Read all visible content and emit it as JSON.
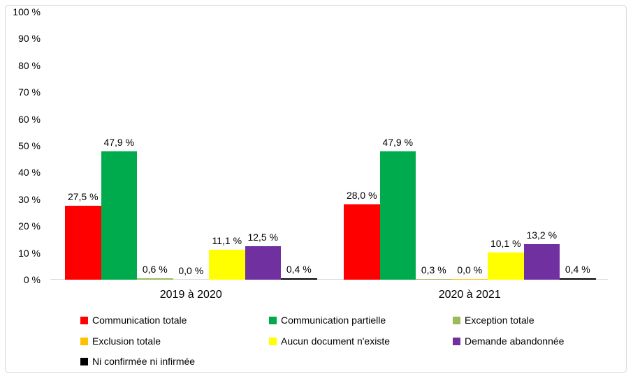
{
  "chart_data": {
    "type": "bar",
    "title": "",
    "categories": [
      "2019 à 2020",
      "2020 à 2021"
    ],
    "series": [
      {
        "name": "Communication totale",
        "color": "#ff0000",
        "values": [
          27.5,
          28.0
        ],
        "labels": [
          "27,5 %",
          "28,0 %"
        ]
      },
      {
        "name": "Communication partielle",
        "color": "#00ab4e",
        "values": [
          47.9,
          47.9
        ],
        "labels": [
          "47,9 %",
          "47,9 %"
        ]
      },
      {
        "name": "Exception totale",
        "color": "#9bbb59",
        "values": [
          0.6,
          0.3
        ],
        "labels": [
          "0,6 %",
          "0,3 %"
        ]
      },
      {
        "name": "Exclusion totale",
        "color": "#ffc000",
        "values": [
          0.0,
          0.0
        ],
        "labels": [
          "0,0 %",
          "0,0 %"
        ]
      },
      {
        "name": "Aucun document n'existe",
        "color": "#ffff00",
        "values": [
          11.1,
          10.1
        ],
        "labels": [
          "11,1 %",
          "10,1 %"
        ]
      },
      {
        "name": "Demande abandonnée",
        "color": "#7030a0",
        "values": [
          12.5,
          13.2
        ],
        "labels": [
          "12,5 %",
          "13,2 %"
        ]
      },
      {
        "name": "Ni confirmée ni infirmée",
        "color": "#000000",
        "values": [
          0.4,
          0.4
        ],
        "labels": [
          "0,4 %",
          "0,4 %"
        ]
      }
    ],
    "y_axis": {
      "min": 0,
      "max": 100,
      "step": 10,
      "tick_labels": [
        "0 %",
        "10 %",
        "20 %",
        "30 %",
        "40 %",
        "50 %",
        "60 %",
        "70 %",
        "80 %",
        "90 %",
        "100 %"
      ]
    },
    "x_axis_labels": [
      "2019 à 2020",
      "2020 à 2021"
    ],
    "grid": false,
    "legend_position": "bottom",
    "render_hints": {
      "zero_value_visible_bars": [
        {
          "category_index": 1,
          "series_index": 3,
          "px": 1.5
        }
      ]
    }
  }
}
